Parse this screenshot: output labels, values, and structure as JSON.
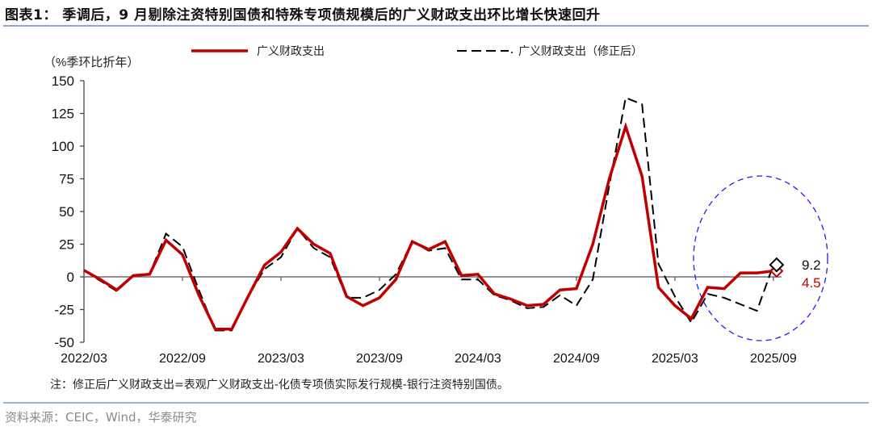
{
  "header": {
    "title": "图表1： 季调后，9 月剔除注资特别国债和特殊专项债规模后的广义财政支出环比增长快速回升"
  },
  "footer": {
    "note": "注：修正后广义财政支出=表观广义财政支出-化债专项债实际发行规模-银行注资特别国债。",
    "source": "资料来源：CEIC，Wind，华泰研究"
  },
  "colors": {
    "series_main": "#c00000",
    "series_adjusted": "#000000",
    "highlight_ellipse": "#1f1fe6",
    "rule": "#8faacb"
  },
  "chart_data": {
    "type": "line",
    "title": "季调后，9 月剔除注资特别国债和特殊专项债规模后的广义财政支出环比增长快速回升",
    "ylabel": "（%季环比折年）",
    "xlabel": "",
    "ylim": [
      -50,
      150
    ],
    "yticks": [
      -50,
      -25,
      0,
      25,
      50,
      75,
      100,
      125,
      150
    ],
    "xtick_labels": [
      "2022/03",
      "2022/09",
      "2023/03",
      "2023/09",
      "2024/03",
      "2024/09",
      "2025/03",
      "2025/09"
    ],
    "grid": false,
    "legend_position": "top",
    "x": [
      "2022/03",
      "2022/04",
      "2022/05",
      "2022/06",
      "2022/07",
      "2022/08",
      "2022/09",
      "2022/10",
      "2022/11",
      "2022/12",
      "2023/01",
      "2023/02",
      "2023/03",
      "2023/04",
      "2023/05",
      "2023/06",
      "2023/07",
      "2023/08",
      "2023/09",
      "2023/10",
      "2023/11",
      "2023/12",
      "2024/01",
      "2024/02",
      "2024/03",
      "2024/04",
      "2024/05",
      "2024/06",
      "2024/07",
      "2024/08",
      "2024/09",
      "2024/10",
      "2024/11",
      "2024/12",
      "2025/01",
      "2025/02",
      "2025/03",
      "2025/04",
      "2025/05",
      "2025/06",
      "2025/07",
      "2025/08",
      "2025/09"
    ],
    "series": [
      {
        "name": "广义财政支出",
        "style": "solid",
        "color": "#c00000",
        "values": [
          5,
          -2,
          -10,
          1,
          2,
          28,
          17,
          -14,
          -40,
          -40,
          -15,
          9,
          19,
          37,
          25,
          18,
          -15,
          -22,
          -16,
          -2,
          27,
          21,
          27,
          1,
          2,
          -13,
          -17,
          -22,
          -21,
          -10,
          -9,
          25,
          75,
          115,
          77,
          -8,
          -22,
          -32,
          -8,
          -9,
          3,
          3,
          4.5
        ],
        "end_label": "4.5"
      },
      {
        "name": "广义财政支出（修正后）",
        "style": "dashed",
        "color": "#000000",
        "values": [
          5,
          -3,
          -11,
          1,
          2,
          33,
          23,
          -10,
          -41,
          -41,
          -15,
          6,
          15,
          37,
          22,
          15,
          -16,
          -16,
          -10,
          2,
          27,
          20,
          22,
          -2,
          -2,
          -14,
          -18,
          -24,
          -23,
          -14,
          -22,
          -2,
          70,
          137,
          132,
          10,
          -15,
          -35,
          -13,
          -16,
          -21,
          -26,
          9.2
        ],
        "end_label": "9.2"
      }
    ],
    "annotations": [
      {
        "type": "ellipse",
        "style": "dashed",
        "color": "#1f1fe6",
        "covers": "2025/03–2025/09"
      },
      {
        "type": "marker",
        "shape": "diamond",
        "series": "广义财政支出（修正后）",
        "x": "2025/09",
        "label": "9.2"
      },
      {
        "type": "marker",
        "shape": "diamond",
        "series": "广义财政支出",
        "x": "2025/09",
        "label": "4.5"
      }
    ]
  }
}
